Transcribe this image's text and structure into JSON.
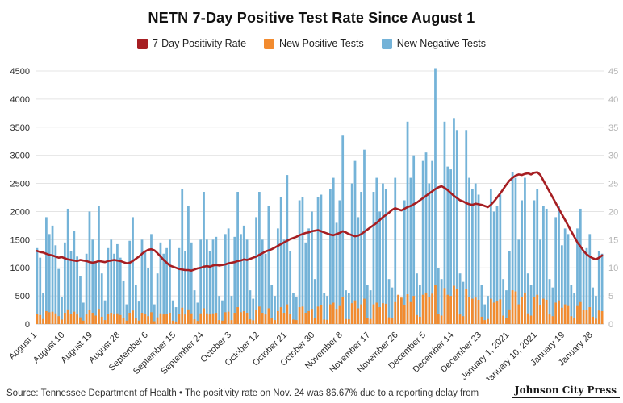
{
  "page": {
    "title": "NETN 7-Day Positive Test Rate Since August 1",
    "source_note": "Source: Tennessee Department of Health • The positivity rate on Nov. 24 was 86.67% due to a reporting delay from",
    "attribution": "Johnson City Press"
  },
  "legend": [
    {
      "label": "7-Day Positivity Rate",
      "color": "#a61e22"
    },
    {
      "label": "New Positive Tests",
      "color": "#f28b2f"
    },
    {
      "label": "New Negative Tests",
      "color": "#74b3d8"
    }
  ],
  "chart_data": {
    "type": "bar+line",
    "title": "NETN 7-Day Positive Test Rate Since August 1",
    "x_unit": "day",
    "x_start": "August 1, 2020",
    "x_end": "January 31, 2021",
    "tick_labels": [
      "August 1",
      "August 10",
      "August 19",
      "August 28",
      "September 6",
      "September 15",
      "September 24",
      "October 3",
      "October 12",
      "October 21",
      "October 30",
      "November 8",
      "November 17",
      "November 26",
      "December 5",
      "December 14",
      "December 23",
      "January 1, 2021",
      "January 10, 2021",
      "January 19",
      "January 28"
    ],
    "tick_indices": [
      0,
      9,
      18,
      27,
      36,
      45,
      54,
      63,
      72,
      81,
      90,
      99,
      108,
      117,
      126,
      135,
      144,
      153,
      162,
      171,
      180
    ],
    "left_axis": {
      "min": 0,
      "max": 4500,
      "step": 500
    },
    "right_axis": {
      "min": 0,
      "max": 45,
      "step": 5,
      "unit": "%"
    },
    "grid": true,
    "legend_position": "top",
    "series": [
      {
        "name": "New Negative Tests",
        "type": "bar",
        "axis": "left",
        "color": "#74b3d8",
        "values": [
          1350,
          1180,
          550,
          1900,
          1600,
          1750,
          1400,
          980,
          480,
          1450,
          2050,
          1300,
          1650,
          1200,
          850,
          380,
          1250,
          2000,
          1500,
          1100,
          2100,
          900,
          420,
          1350,
          1500,
          1250,
          1420,
          1180,
          760,
          350,
          1480,
          1900,
          700,
          400,
          1500,
          1300,
          1000,
          1600,
          350,
          900,
          1450,
          1250,
          1350,
          1500,
          420,
          300,
          1350,
          2400,
          1300,
          2100,
          1450,
          600,
          380,
          1500,
          2350,
          1500,
          1300,
          1500,
          1550,
          500,
          420,
          1600,
          1700,
          500,
          1550,
          2350,
          1600,
          1750,
          1500,
          600,
          450,
          1900,
          2350,
          1500,
          1250,
          2100,
          700,
          500,
          1700,
          2250,
          1500,
          2650,
          1300,
          550,
          480,
          2200,
          2250,
          1450,
          1700,
          2000,
          800,
          2250,
          2300,
          550,
          500,
          2400,
          2600,
          1800,
          2200,
          3350,
          600,
          550,
          2500,
          2900,
          1900,
          2350,
          3100,
          700,
          600,
          2350,
          2600,
          2000,
          2500,
          2400,
          800,
          650,
          2600,
          500,
          450,
          2200,
          3600,
          2600,
          3000,
          900,
          700,
          2900,
          3050,
          2500,
          2900,
          4550,
          1000,
          800,
          3600,
          2800,
          2750,
          3650,
          3450,
          900,
          750,
          3450,
          2600,
          2400,
          2500,
          2300,
          700,
          350,
          500,
          2400,
          2000,
          2100,
          2300,
          800,
          600,
          1300,
          2700,
          2600,
          1500,
          2200,
          2600,
          900,
          700,
          2200,
          2400,
          1500,
          2100,
          2050,
          800,
          650,
          1900,
          2100,
          1400,
          1700,
          1600,
          700,
          550,
          1700,
          2050,
          1300,
          1350,
          1600,
          650,
          500,
          1300,
          1250
        ]
      },
      {
        "name": "New Positive Tests",
        "type": "bar",
        "axis": "left",
        "color": "#f28b2f",
        "values": [
          180,
          160,
          90,
          230,
          210,
          220,
          190,
          140,
          80,
          200,
          260,
          180,
          220,
          170,
          120,
          60,
          170,
          250,
          200,
          150,
          270,
          130,
          70,
          180,
          200,
          170,
          190,
          160,
          110,
          60,
          200,
          240,
          100,
          60,
          200,
          180,
          140,
          210,
          50,
          120,
          190,
          170,
          180,
          200,
          60,
          45,
          180,
          290,
          170,
          260,
          190,
          85,
          55,
          190,
          280,
          190,
          170,
          190,
          200,
          70,
          60,
          210,
          220,
          70,
          200,
          300,
          210,
          230,
          200,
          85,
          65,
          250,
          310,
          200,
          170,
          280,
          100,
          70,
          230,
          300,
          200,
          350,
          180,
          80,
          70,
          300,
          310,
          200,
          230,
          270,
          110,
          310,
          330,
          80,
          75,
          350,
          380,
          270,
          320,
          480,
          90,
          85,
          370,
          420,
          280,
          350,
          450,
          105,
          90,
          350,
          380,
          300,
          370,
          360,
          120,
          100,
          390,
          520,
          470,
          330,
          530,
          390,
          500,
          160,
          130,
          520,
          560,
          480,
          540,
          700,
          180,
          150,
          640,
          520,
          500,
          680,
          620,
          170,
          140,
          620,
          480,
          450,
          470,
          430,
          130,
          70,
          90,
          450,
          380,
          400,
          440,
          150,
          110,
          260,
          600,
          580,
          350,
          480,
          560,
          190,
          150,
          480,
          520,
          330,
          450,
          430,
          170,
          140,
          380,
          420,
          290,
          350,
          320,
          140,
          110,
          320,
          390,
          250,
          250,
          300,
          130,
          95,
          240,
          230
        ]
      },
      {
        "name": "7-Day Positivity Rate",
        "type": "line",
        "axis": "right",
        "color": "#a61e22",
        "values": [
          13.0,
          12.8,
          12.7,
          12.5,
          12.3,
          12.2,
          12.0,
          11.8,
          11.9,
          11.7,
          11.5,
          11.4,
          11.3,
          11.2,
          11.4,
          11.3,
          11.2,
          11.0,
          10.9,
          11.0,
          11.2,
          11.1,
          11.0,
          11.2,
          11.3,
          11.4,
          11.3,
          11.2,
          11.0,
          10.8,
          10.9,
          11.2,
          11.6,
          12.0,
          12.5,
          12.9,
          13.2,
          13.3,
          13.1,
          12.6,
          12.0,
          11.4,
          10.9,
          10.4,
          10.2,
          10.0,
          9.8,
          9.7,
          9.6,
          9.6,
          9.5,
          9.7,
          9.9,
          10.0,
          10.2,
          10.3,
          10.2,
          10.4,
          10.5,
          10.4,
          10.5,
          10.6,
          10.8,
          10.9,
          11.0,
          11.2,
          11.3,
          11.5,
          11.4,
          11.6,
          11.8,
          12.0,
          12.3,
          12.6,
          12.9,
          13.1,
          13.3,
          13.6,
          13.9,
          14.2,
          14.5,
          14.8,
          15.1,
          15.3,
          15.5,
          15.8,
          16.0,
          16.2,
          16.3,
          16.5,
          16.6,
          16.7,
          16.5,
          16.3,
          16.1,
          15.9,
          15.8,
          16.0,
          16.2,
          16.5,
          16.3,
          16.0,
          15.8,
          15.6,
          15.7,
          16.0,
          16.4,
          16.8,
          17.2,
          17.6,
          18.0,
          18.5,
          19.0,
          19.4,
          19.8,
          20.3,
          20.6,
          20.4,
          20.2,
          20.5,
          20.8,
          21.0,
          21.3,
          21.6,
          22.0,
          22.4,
          22.8,
          23.2,
          23.6,
          24.0,
          24.3,
          24.5,
          24.2,
          23.8,
          23.3,
          22.8,
          22.4,
          22.0,
          21.8,
          21.5,
          21.3,
          21.2,
          21.4,
          21.3,
          21.2,
          21.0,
          20.8,
          21.2,
          21.8,
          22.5,
          23.2,
          24.0,
          24.8,
          25.5,
          26.0,
          26.4,
          26.6,
          26.5,
          26.7,
          26.8,
          26.6,
          26.9,
          27.0,
          26.5,
          25.5,
          24.5,
          23.5,
          22.5,
          21.5,
          20.5,
          19.5,
          18.5,
          17.5,
          16.5,
          15.5,
          14.5,
          13.8,
          13.0,
          12.4,
          12.0,
          11.7,
          11.5,
          11.8,
          12.2
        ]
      }
    ]
  }
}
